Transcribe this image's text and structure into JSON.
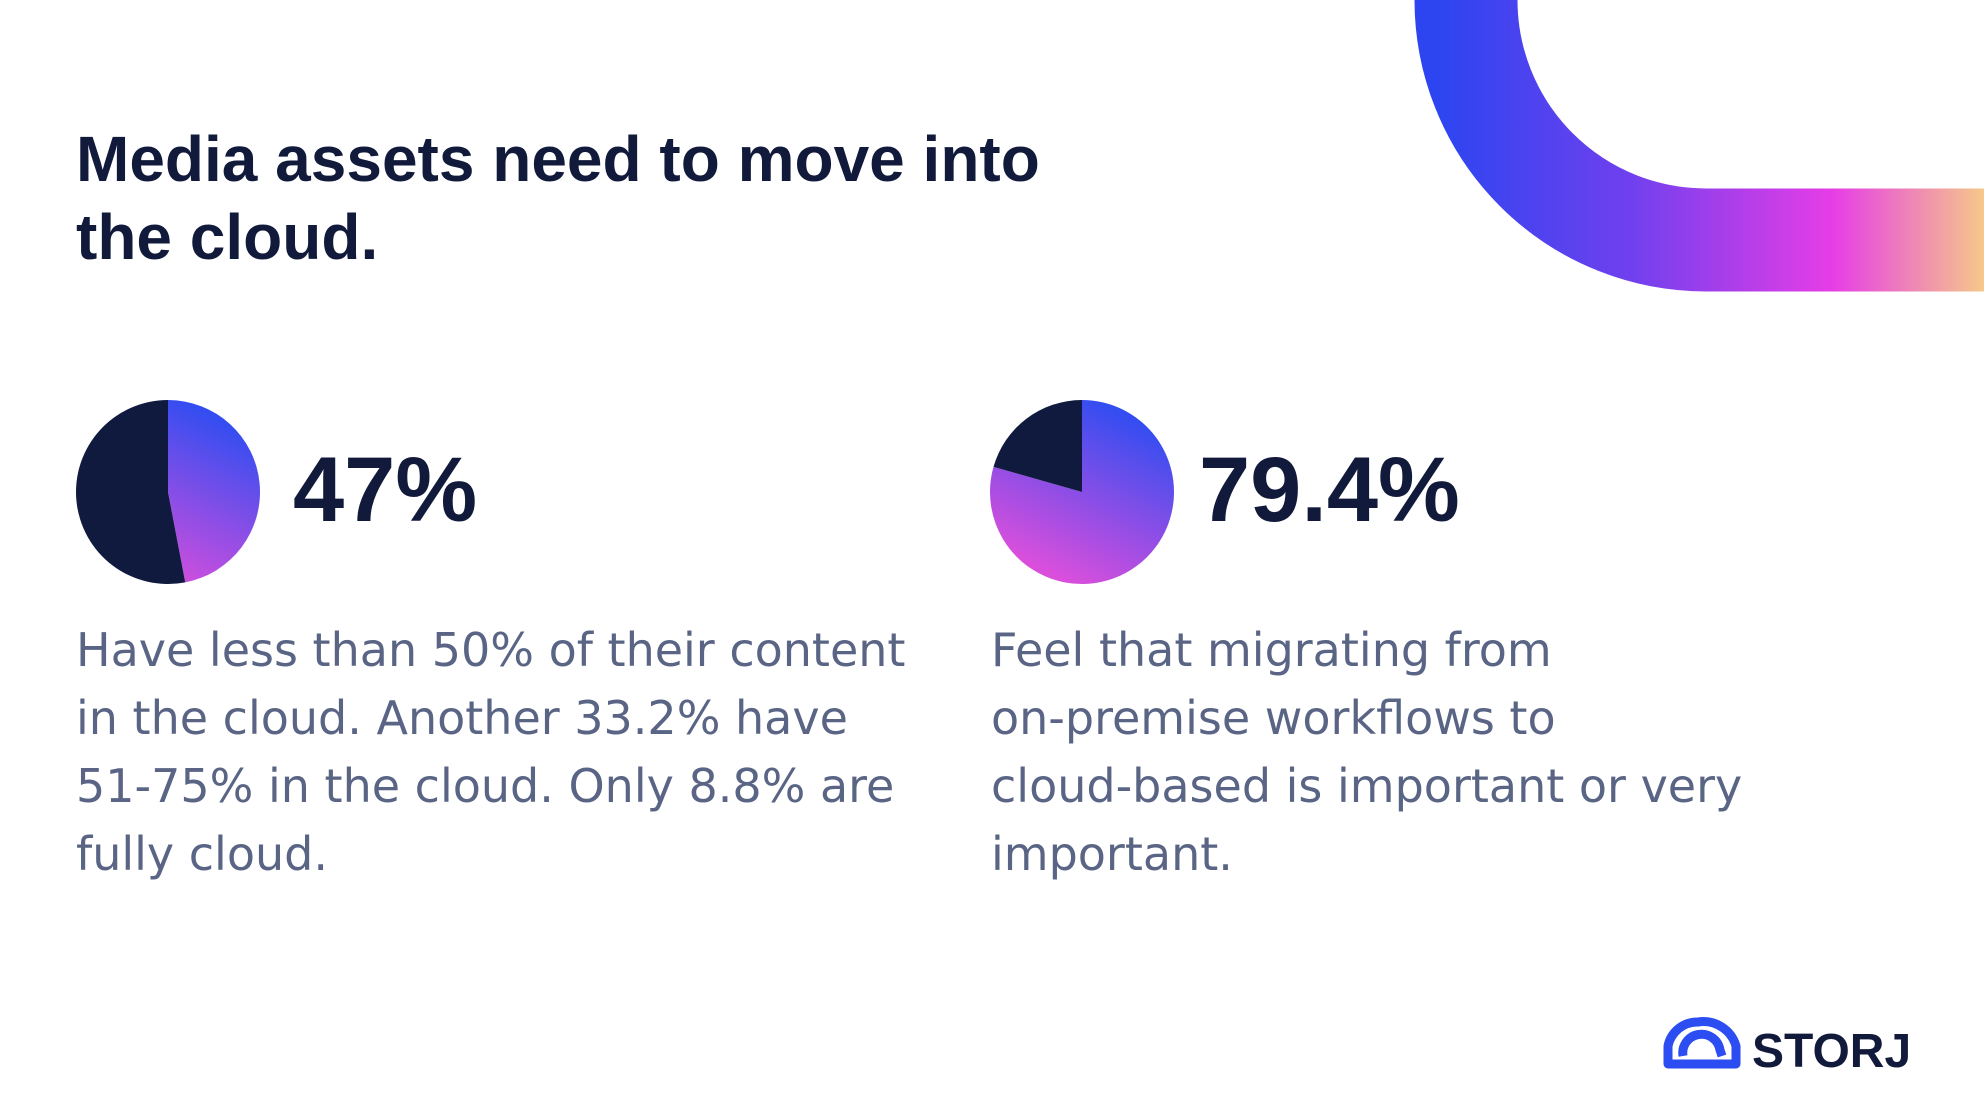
{
  "title": [
    "Media assets need to move into",
    "the cloud."
  ],
  "chart_data": [
    {
      "type": "pie",
      "headline": "47%",
      "values": [
        47,
        53
      ],
      "colors": [
        [
          "#2a4df2",
          "#d94fdc"
        ],
        "#101a3e"
      ],
      "description": [
        "Have less than 50% of their content",
        "in the cloud. Another 33.2% have",
        "51-75% in the cloud. Only 8.8% are",
        "fully cloud."
      ]
    },
    {
      "type": "pie",
      "headline": "79.4%",
      "values": [
        79.4,
        20.6
      ],
      "colors": [
        [
          "#2a4df2",
          "#d94fdc"
        ],
        "#101a3e"
      ],
      "description": [
        "Feel that migrating from",
        "on-premise workflows to",
        "cloud-based is important or very",
        "important."
      ]
    }
  ],
  "logo": "STORJ"
}
